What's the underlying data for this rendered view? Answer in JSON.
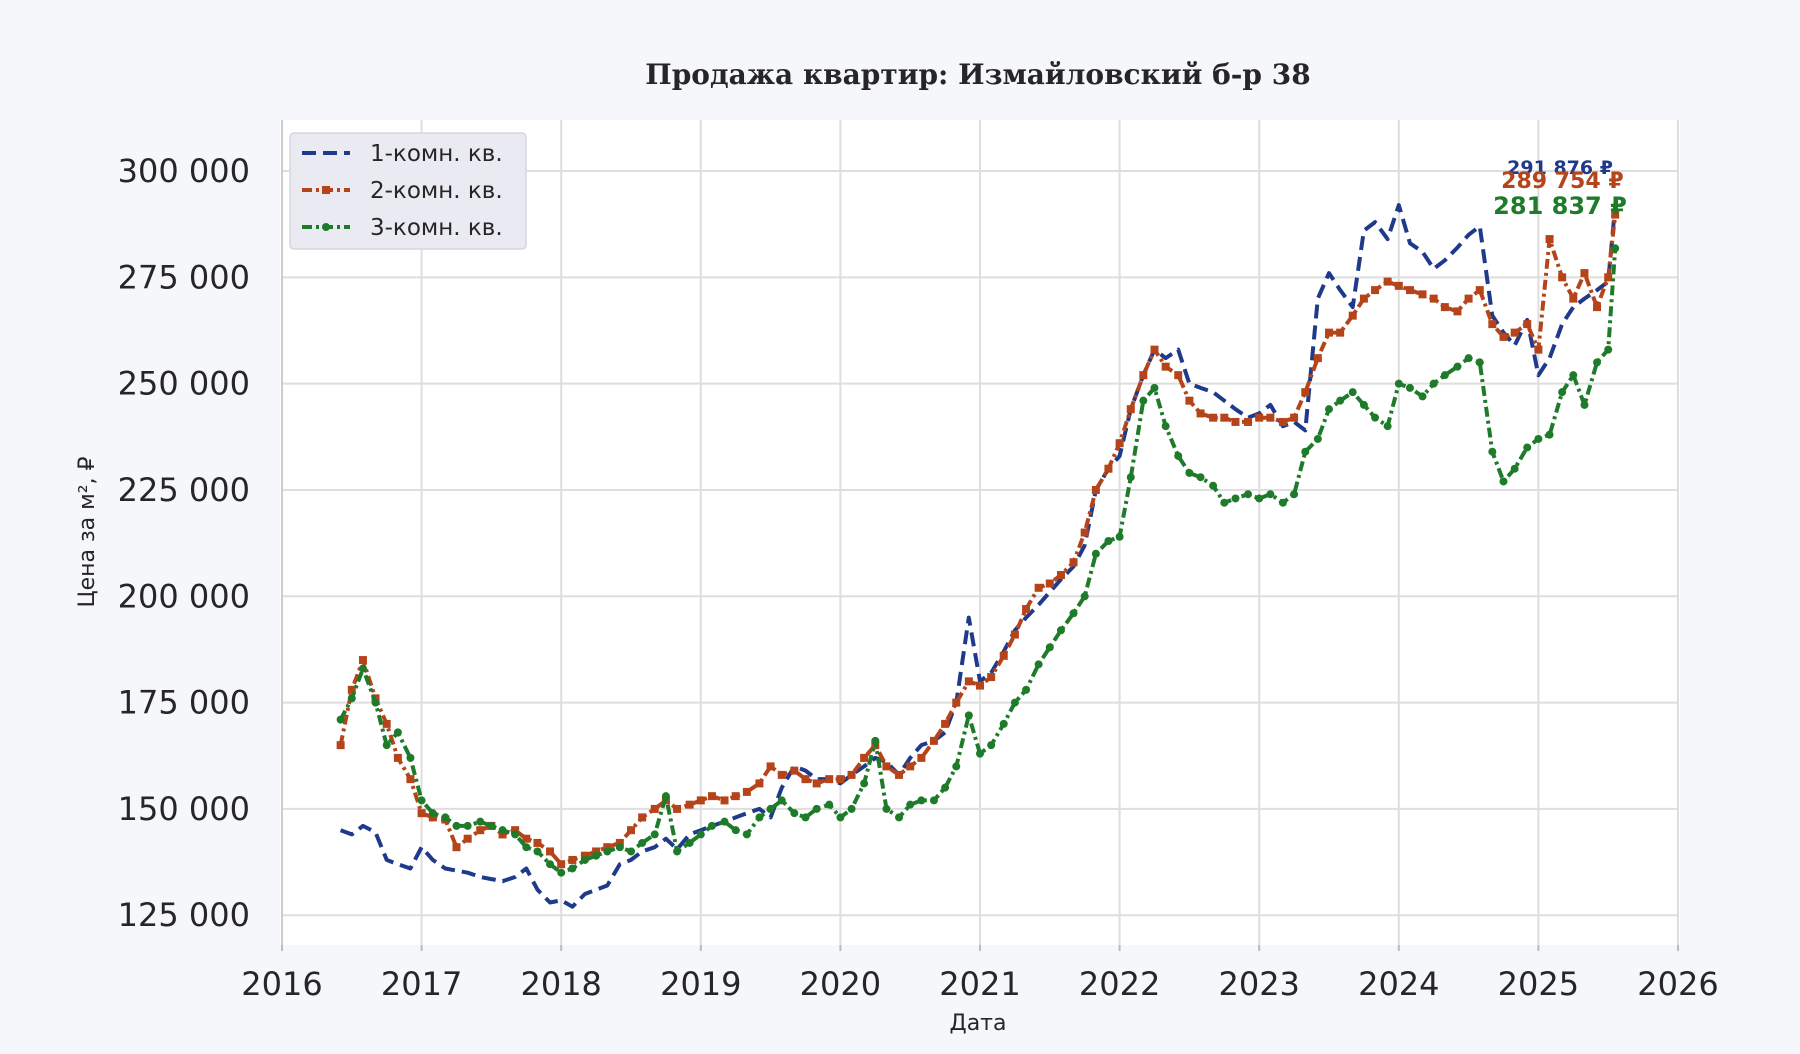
{
  "chart_data": {
    "type": "line",
    "title": "Продажа квартир: Измайловский б-р 38",
    "xlabel": "Дата",
    "ylabel": "Цена за м², ₽",
    "xlim": [
      2016.0,
      2026.0
    ],
    "ylim": [
      118000,
      312000
    ],
    "x_ticks": [
      "2016",
      "2017",
      "2018",
      "2019",
      "2020",
      "2021",
      "2022",
      "2023",
      "2024",
      "2025",
      "2026"
    ],
    "y_ticks": [
      {
        "value": 125000,
        "label": "125 000"
      },
      {
        "value": 150000,
        "label": "150 000"
      },
      {
        "value": 175000,
        "label": "175 000"
      },
      {
        "value": 200000,
        "label": "200 000"
      },
      {
        "value": 225000,
        "label": "225 000"
      },
      {
        "value": 250000,
        "label": "250 000"
      },
      {
        "value": 275000,
        "label": "275 000"
      },
      {
        "value": 300000,
        "label": "300 000"
      }
    ],
    "grid": true,
    "legend_position": "top-left",
    "series": [
      {
        "name": "1-комн. кв.",
        "color": "#1f3a8a",
        "dash": "dashed",
        "last_label": "291 876 ₽",
        "x": [
          2016.42,
          2016.5,
          2016.58,
          2016.67,
          2016.75,
          2016.83,
          2016.92,
          2017.0,
          2017.08,
          2017.17,
          2017.25,
          2017.33,
          2017.42,
          2017.5,
          2017.58,
          2017.67,
          2017.75,
          2017.83,
          2017.92,
          2018.0,
          2018.08,
          2018.17,
          2018.25,
          2018.33,
          2018.42,
          2018.5,
          2018.58,
          2018.67,
          2018.75,
          2018.83,
          2018.92,
          2019.0,
          2019.08,
          2019.17,
          2019.25,
          2019.33,
          2019.42,
          2019.5,
          2019.58,
          2019.67,
          2019.75,
          2019.83,
          2019.92,
          2020.0,
          2020.08,
          2020.17,
          2020.25,
          2020.33,
          2020.42,
          2020.5,
          2020.58,
          2020.67,
          2020.75,
          2020.83,
          2020.92,
          2021.0,
          2021.08,
          2021.17,
          2021.25,
          2021.33,
          2021.42,
          2021.5,
          2021.58,
          2021.67,
          2021.75,
          2021.83,
          2021.92,
          2022.0,
          2022.08,
          2022.17,
          2022.25,
          2022.33,
          2022.42,
          2022.5,
          2022.58,
          2022.67,
          2022.75,
          2022.83,
          2022.92,
          2023.0,
          2023.08,
          2023.17,
          2023.25,
          2023.33,
          2023.42,
          2023.5,
          2023.58,
          2023.67,
          2023.75,
          2023.83,
          2023.92,
          2024.0,
          2024.08,
          2024.17,
          2024.25,
          2024.33,
          2024.42,
          2024.5,
          2024.58,
          2024.67,
          2024.75,
          2024.83,
          2024.92,
          2025.0,
          2025.08,
          2025.17,
          2025.25,
          2025.33,
          2025.42,
          2025.5,
          2025.55
        ],
        "y": [
          145000,
          144000,
          146000,
          144500,
          138000,
          137000,
          136000,
          141000,
          138000,
          136000,
          135500,
          135000,
          134000,
          133500,
          133000,
          134000,
          136000,
          131000,
          128000,
          128500,
          127000,
          130000,
          131000,
          132000,
          137000,
          138000,
          140000,
          141000,
          143000,
          140500,
          144000,
          145000,
          146000,
          147000,
          148000,
          149000,
          150000,
          148000,
          155000,
          160000,
          159000,
          157000,
          157000,
          156000,
          158000,
          160000,
          162000,
          161000,
          158000,
          162000,
          165000,
          166000,
          168000,
          175000,
          195000,
          180000,
          182000,
          187000,
          192000,
          195000,
          198000,
          201000,
          204000,
          207000,
          212000,
          225000,
          230000,
          233000,
          244000,
          252000,
          258000,
          256000,
          258000,
          250000,
          249000,
          248000,
          246000,
          244000,
          242000,
          243000,
          245000,
          240000,
          241000,
          239000,
          270000,
          276000,
          272000,
          268000,
          286000,
          288000,
          284000,
          292000,
          283000,
          281000,
          277000,
          279000,
          282000,
          285000,
          287000,
          266000,
          262000,
          259000,
          265000,
          252000,
          256000,
          264000,
          268000,
          270000,
          272000,
          274000,
          291876
        ]
      },
      {
        "name": "2-комн. кв.",
        "color": "#b5441a",
        "dash": "dash-dot",
        "last_label": "289 754 ₽",
        "x": [
          2016.42,
          2016.5,
          2016.58,
          2016.67,
          2016.75,
          2016.83,
          2016.92,
          2017.0,
          2017.08,
          2017.17,
          2017.25,
          2017.33,
          2017.42,
          2017.5,
          2017.58,
          2017.67,
          2017.75,
          2017.83,
          2017.92,
          2018.0,
          2018.08,
          2018.17,
          2018.25,
          2018.33,
          2018.42,
          2018.5,
          2018.58,
          2018.67,
          2018.75,
          2018.83,
          2018.92,
          2019.0,
          2019.08,
          2019.17,
          2019.25,
          2019.33,
          2019.42,
          2019.5,
          2019.58,
          2019.67,
          2019.75,
          2019.83,
          2019.92,
          2020.0,
          2020.08,
          2020.17,
          2020.25,
          2020.33,
          2020.42,
          2020.5,
          2020.58,
          2020.67,
          2020.75,
          2020.83,
          2020.92,
          2021.0,
          2021.08,
          2021.17,
          2021.25,
          2021.33,
          2021.42,
          2021.5,
          2021.58,
          2021.67,
          2021.75,
          2021.83,
          2021.92,
          2022.0,
          2022.08,
          2022.17,
          2022.25,
          2022.33,
          2022.42,
          2022.5,
          2022.58,
          2022.67,
          2022.75,
          2022.83,
          2022.92,
          2023.0,
          2023.08,
          2023.17,
          2023.25,
          2023.33,
          2023.42,
          2023.5,
          2023.58,
          2023.67,
          2023.75,
          2023.83,
          2023.92,
          2024.0,
          2024.08,
          2024.17,
          2024.25,
          2024.33,
          2024.42,
          2024.5,
          2024.58,
          2024.67,
          2024.75,
          2024.83,
          2024.92,
          2025.0,
          2025.08,
          2025.17,
          2025.25,
          2025.33,
          2025.42,
          2025.5,
          2025.55
        ],
        "y": [
          165000,
          178000,
          185000,
          176000,
          170000,
          162000,
          157000,
          149000,
          148000,
          147500,
          141000,
          143000,
          145000,
          146000,
          144000,
          145000,
          143000,
          142000,
          140000,
          137000,
          138000,
          139000,
          140000,
          141000,
          142000,
          145000,
          148000,
          150000,
          152000,
          150000,
          151000,
          152000,
          153000,
          152000,
          153000,
          154000,
          156000,
          160000,
          158000,
          159000,
          157000,
          156000,
          157000,
          157000,
          158000,
          162000,
          165000,
          160000,
          158000,
          160000,
          162000,
          166000,
          170000,
          175000,
          180000,
          179000,
          181000,
          186000,
          191000,
          197000,
          202000,
          203000,
          205000,
          208000,
          215000,
          225000,
          230000,
          236000,
          244000,
          252000,
          258000,
          254000,
          252000,
          246000,
          243000,
          242000,
          242000,
          241000,
          241000,
          242000,
          242000,
          241000,
          242000,
          248000,
          256000,
          262000,
          262000,
          266000,
          270000,
          272000,
          274000,
          273000,
          272000,
          271000,
          270000,
          268000,
          267000,
          270000,
          272000,
          264000,
          261000,
          262000,
          264000,
          258000,
          284000,
          275000,
          270000,
          276000,
          268000,
          275000,
          289754
        ]
      },
      {
        "name": "3-комн. кв.",
        "color": "#1e7b2a",
        "dash": "dash-dot",
        "last_label": "281 837 ₽",
        "x": [
          2016.42,
          2016.5,
          2016.58,
          2016.67,
          2016.75,
          2016.83,
          2016.92,
          2017.0,
          2017.08,
          2017.17,
          2017.25,
          2017.33,
          2017.42,
          2017.5,
          2017.58,
          2017.67,
          2017.75,
          2017.83,
          2017.92,
          2018.0,
          2018.08,
          2018.17,
          2018.25,
          2018.33,
          2018.42,
          2018.5,
          2018.58,
          2018.67,
          2018.75,
          2018.83,
          2018.92,
          2019.0,
          2019.08,
          2019.17,
          2019.25,
          2019.33,
          2019.42,
          2019.5,
          2019.58,
          2019.67,
          2019.75,
          2019.83,
          2019.92,
          2020.0,
          2020.08,
          2020.17,
          2020.25,
          2020.33,
          2020.42,
          2020.5,
          2020.58,
          2020.67,
          2020.75,
          2020.83,
          2020.92,
          2021.0,
          2021.08,
          2021.17,
          2021.25,
          2021.33,
          2021.42,
          2021.5,
          2021.58,
          2021.67,
          2021.75,
          2021.83,
          2021.92,
          2022.0,
          2022.08,
          2022.17,
          2022.25,
          2022.33,
          2022.42,
          2022.5,
          2022.58,
          2022.67,
          2022.75,
          2022.83,
          2022.92,
          2023.0,
          2023.08,
          2023.17,
          2023.25,
          2023.33,
          2023.42,
          2023.5,
          2023.58,
          2023.67,
          2023.75,
          2023.83,
          2023.92,
          2024.0,
          2024.08,
          2024.17,
          2024.25,
          2024.33,
          2024.42,
          2024.5,
          2024.58,
          2024.67,
          2024.75,
          2024.83,
          2024.92,
          2025.0,
          2025.08,
          2025.17,
          2025.25,
          2025.33,
          2025.42,
          2025.5,
          2025.55
        ],
        "y": [
          171000,
          176000,
          183000,
          175000,
          165000,
          168000,
          162000,
          152000,
          149000,
          148000,
          146000,
          146000,
          147000,
          146000,
          145000,
          144000,
          141000,
          140000,
          137000,
          135000,
          136000,
          138000,
          139000,
          140000,
          141000,
          140000,
          142000,
          144000,
          153000,
          140000,
          142000,
          144000,
          146000,
          147000,
          145000,
          144000,
          148000,
          150000,
          152000,
          149000,
          148000,
          150000,
          151000,
          148000,
          150000,
          156000,
          166000,
          150000,
          148000,
          151000,
          152000,
          152000,
          155000,
          160000,
          172000,
          163000,
          165000,
          170000,
          175000,
          178000,
          184000,
          188000,
          192000,
          196000,
          200000,
          210000,
          213000,
          214000,
          228000,
          246000,
          249000,
          240000,
          233000,
          229000,
          228000,
          226000,
          222000,
          223000,
          224000,
          223000,
          224000,
          222000,
          224000,
          234000,
          237000,
          244000,
          246000,
          248000,
          245000,
          242000,
          240000,
          250000,
          249000,
          247000,
          250000,
          252000,
          254000,
          256000,
          255000,
          234000,
          227000,
          230000,
          235000,
          237000,
          238000,
          248000,
          252000,
          245000,
          255000,
          258000,
          281837
        ]
      }
    ]
  }
}
